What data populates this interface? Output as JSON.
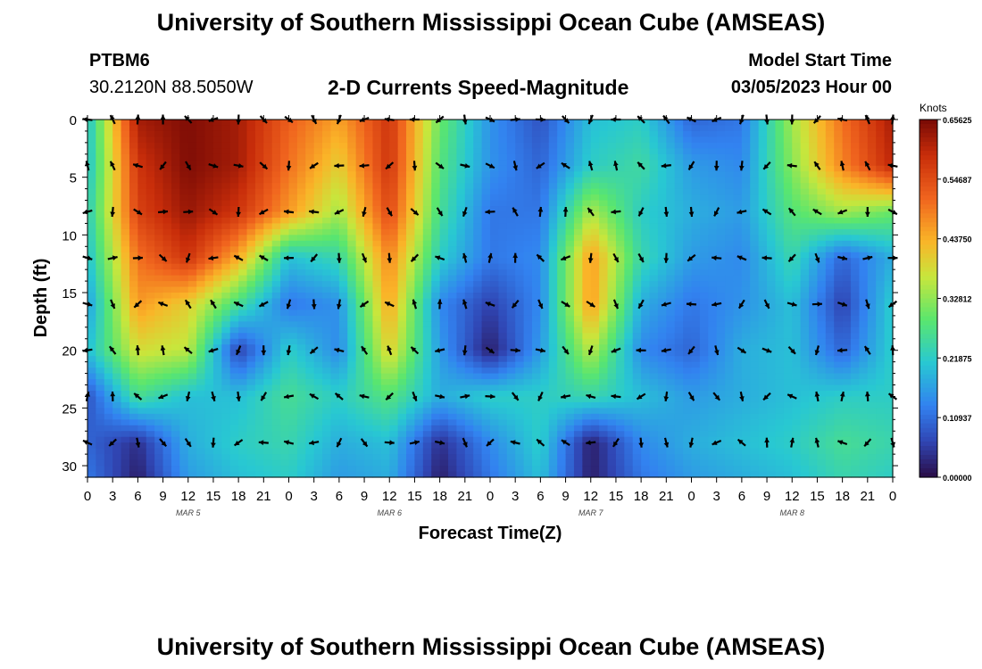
{
  "page": {
    "title": "University of Southern Mississippi Ocean Cube (AMSEAS)",
    "title_repeat": "University of Southern Mississippi Ocean Cube (AMSEAS)",
    "station_id": "PTBM6",
    "station_location": "30.2120N  88.5050W",
    "plot_title": "2-D Currents Speed-Magnitude",
    "model_start_label": "Model Start Time",
    "model_start_value": "03/05/2023 Hour 00"
  },
  "chart_data": {
    "type": "heatmap",
    "title": "2-D Currents Speed-Magnitude",
    "xlabel": "Forecast Time(Z)",
    "ylabel": "Depth (ft)",
    "x_tick_labels": [
      "0",
      "3",
      "6",
      "9",
      "12",
      "15",
      "18",
      "21",
      "0",
      "3",
      "6",
      "9",
      "12",
      "15",
      "18",
      "21",
      "0",
      "3",
      "6",
      "9",
      "12",
      "15",
      "18",
      "21",
      "0",
      "3",
      "6",
      "9",
      "12",
      "15",
      "18",
      "21",
      "0"
    ],
    "x_range_hours": [
      0,
      96
    ],
    "y_range_ft": [
      0,
      31
    ],
    "y_ticks": [
      0,
      5,
      10,
      15,
      20,
      25,
      30
    ],
    "day_labels": [
      {
        "label": "MAR 5",
        "hour": 12
      },
      {
        "label": "MAR 6",
        "hour": 36
      },
      {
        "label": "MAR 7",
        "hour": 60
      },
      {
        "label": "MAR 8",
        "hour": 84
      }
    ],
    "colorbar": {
      "label": "Knots",
      "min": 0.0,
      "max": 0.65625,
      "tick_labels": [
        "0.65625",
        "0.54687",
        "0.43750",
        "0.32812",
        "0.21875",
        "0.10937",
        "0.00000"
      ]
    },
    "speed_knots_grid": {
      "time_hours": [
        0,
        6,
        12,
        18,
        24,
        30,
        36,
        42,
        48,
        54,
        60,
        66,
        72,
        78,
        84,
        90,
        96
      ],
      "depth_ft": [
        0,
        4,
        8,
        12,
        16,
        20,
        24,
        28,
        31
      ],
      "values": [
        [
          0.2,
          0.62,
          0.65,
          0.62,
          0.52,
          0.45,
          0.58,
          0.3,
          0.15,
          0.08,
          0.2,
          0.22,
          0.1,
          0.12,
          0.34,
          0.5,
          0.62
        ],
        [
          0.2,
          0.58,
          0.65,
          0.62,
          0.5,
          0.4,
          0.58,
          0.28,
          0.15,
          0.1,
          0.22,
          0.25,
          0.16,
          0.14,
          0.32,
          0.48,
          0.6
        ],
        [
          0.22,
          0.56,
          0.63,
          0.58,
          0.46,
          0.34,
          0.55,
          0.26,
          0.12,
          0.12,
          0.35,
          0.22,
          0.18,
          0.16,
          0.28,
          0.34,
          0.3
        ],
        [
          0.2,
          0.5,
          0.58,
          0.44,
          0.2,
          0.24,
          0.48,
          0.22,
          0.12,
          0.14,
          0.46,
          0.24,
          0.16,
          0.14,
          0.24,
          0.1,
          0.18
        ],
        [
          0.16,
          0.46,
          0.4,
          0.26,
          0.12,
          0.15,
          0.45,
          0.14,
          0.06,
          0.14,
          0.46,
          0.18,
          0.12,
          0.15,
          0.2,
          0.06,
          0.22
        ],
        [
          0.2,
          0.38,
          0.36,
          0.06,
          0.22,
          0.14,
          0.4,
          0.16,
          0.02,
          0.16,
          0.36,
          0.14,
          0.1,
          0.18,
          0.2,
          0.1,
          0.22
        ],
        [
          0.08,
          0.26,
          0.2,
          0.2,
          0.26,
          0.22,
          0.28,
          0.18,
          0.22,
          0.22,
          0.24,
          0.2,
          0.16,
          0.18,
          0.2,
          0.22,
          0.22
        ],
        [
          0.1,
          0.04,
          0.18,
          0.22,
          0.24,
          0.18,
          0.2,
          0.04,
          0.14,
          0.22,
          0.02,
          0.14,
          0.18,
          0.2,
          0.22,
          0.26,
          0.24
        ],
        [
          0.12,
          0.02,
          0.16,
          0.2,
          0.22,
          0.16,
          0.18,
          0.02,
          0.12,
          0.2,
          0.02,
          0.12,
          0.16,
          0.18,
          0.2,
          0.24,
          0.22
        ]
      ]
    },
    "vector_depths_ft": [
      0,
      4,
      8,
      12,
      16,
      20,
      24,
      28
    ]
  }
}
